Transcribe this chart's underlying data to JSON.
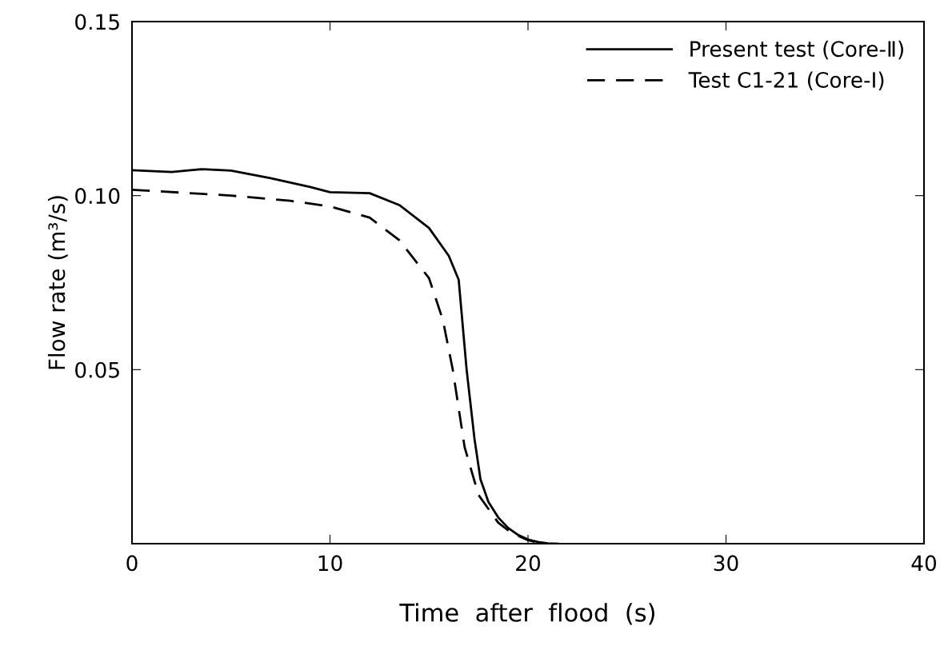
{
  "chart_data": {
    "type": "line",
    "xlabel": "Time  after  flood  (s)",
    "ylabel": "Flow rate (m³/s)",
    "xlim": [
      0,
      40
    ],
    "ylim": [
      0,
      0.15
    ],
    "xticks": [
      0,
      10,
      20,
      30,
      40
    ],
    "yticks": [
      {
        "value": 0.05,
        "label": "0.05"
      },
      {
        "value": 0.1,
        "label": "0.10"
      },
      {
        "value": 0.15,
        "label": "0.15"
      }
    ],
    "grid": false,
    "legend": "top right",
    "series": [
      {
        "name": "Present test (Core-Ⅱ)",
        "color": "#000000",
        "line_style": "solid",
        "x": [
          0,
          2,
          3.5,
          5,
          7,
          9,
          10,
          12,
          13.5,
          15,
          16,
          16.5,
          16.9,
          17.3,
          17.6,
          18,
          18.5,
          19,
          19.5,
          20,
          20.5,
          21,
          21.5
        ],
        "values": [
          0.1073,
          0.1068,
          0.1076,
          0.1072,
          0.105,
          0.1025,
          0.101,
          0.1007,
          0.0973,
          0.0907,
          0.0827,
          0.0758,
          0.05,
          0.03,
          0.0185,
          0.012,
          0.0075,
          0.0045,
          0.0025,
          0.0012,
          0.0005,
          0.0001,
          0
        ]
      },
      {
        "name": "Test C1-21 (Core-Ⅰ)",
        "color": "#000000",
        "line_style": "dashed",
        "x": [
          0,
          5,
          8,
          10,
          12,
          13.5,
          15,
          15.7,
          16.2,
          16.8,
          17.5,
          18.5,
          19.2,
          20,
          20.5,
          21
        ],
        "values": [
          0.1017,
          0.1,
          0.0985,
          0.0969,
          0.0937,
          0.0872,
          0.0763,
          0.0643,
          0.05,
          0.0277,
          0.014,
          0.006,
          0.003,
          0.001,
          0.0003,
          0
        ]
      }
    ]
  }
}
